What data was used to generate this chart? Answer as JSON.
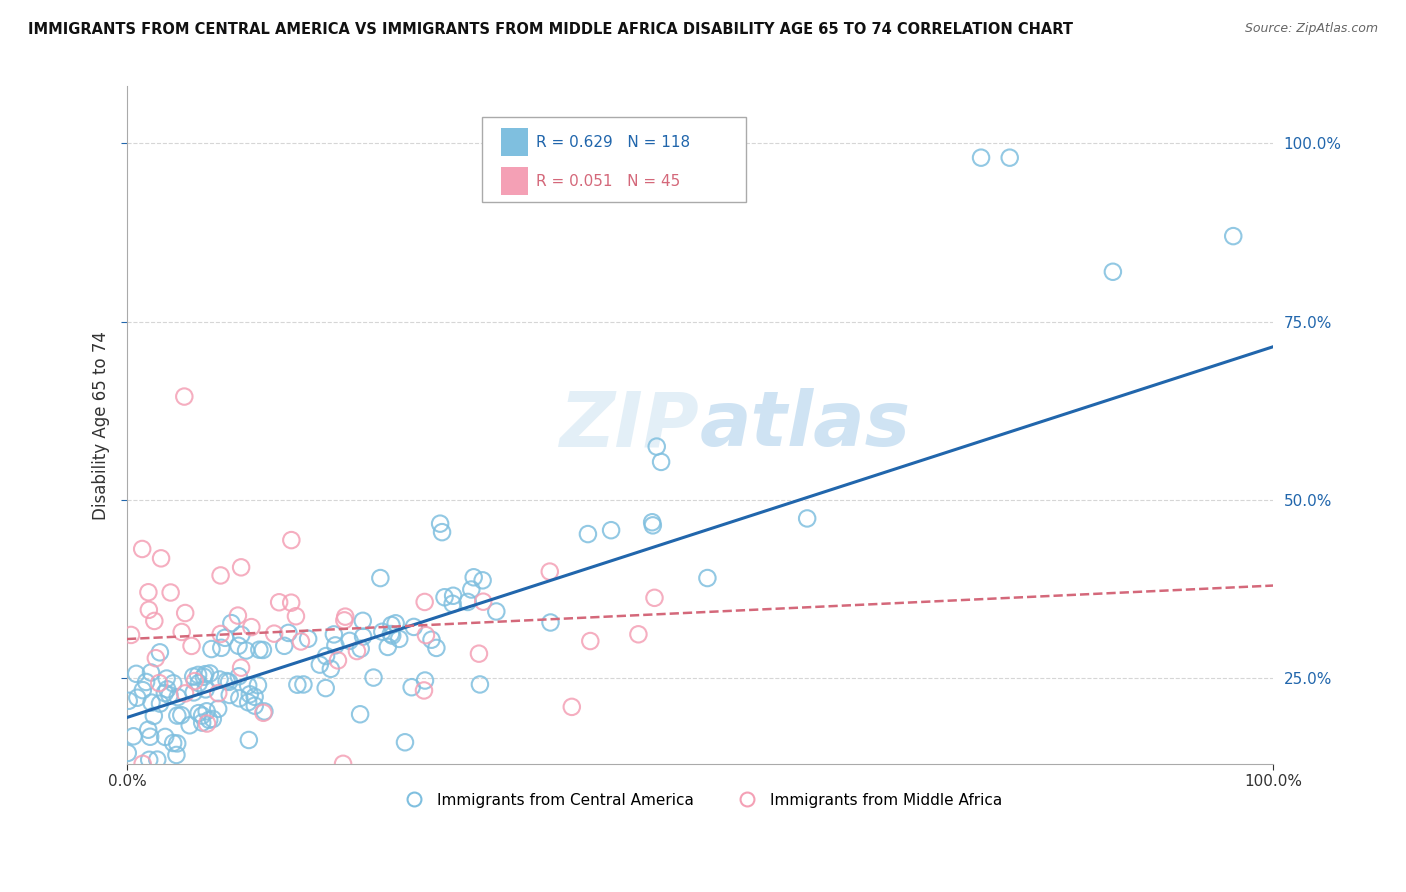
{
  "title": "IMMIGRANTS FROM CENTRAL AMERICA VS IMMIGRANTS FROM MIDDLE AFRICA DISABILITY AGE 65 TO 74 CORRELATION CHART",
  "source": "Source: ZipAtlas.com",
  "ylabel": "Disability Age 65 to 74",
  "watermark": "ZIPAtlas",
  "legend_blue_R": "R = 0.629",
  "legend_blue_N": "N = 118",
  "legend_pink_R": "R = 0.051",
  "legend_pink_N": "N = 45",
  "legend_blue_label": "Immigrants from Central America",
  "legend_pink_label": "Immigrants from Middle Africa",
  "xlim": [
    0.0,
    1.0
  ],
  "ylim": [
    0.13,
    1.08
  ],
  "blue_color": "#7fbfdf",
  "blue_line_color": "#2166ac",
  "pink_color": "#f4a0b5",
  "pink_line_color": "#d4687a",
  "tick_color": "#2166ac",
  "grid_color": "#cccccc",
  "background_color": "#ffffff",
  "blue_slope": 0.52,
  "blue_intercept": 0.195,
  "pink_slope": 0.075,
  "pink_intercept": 0.305
}
